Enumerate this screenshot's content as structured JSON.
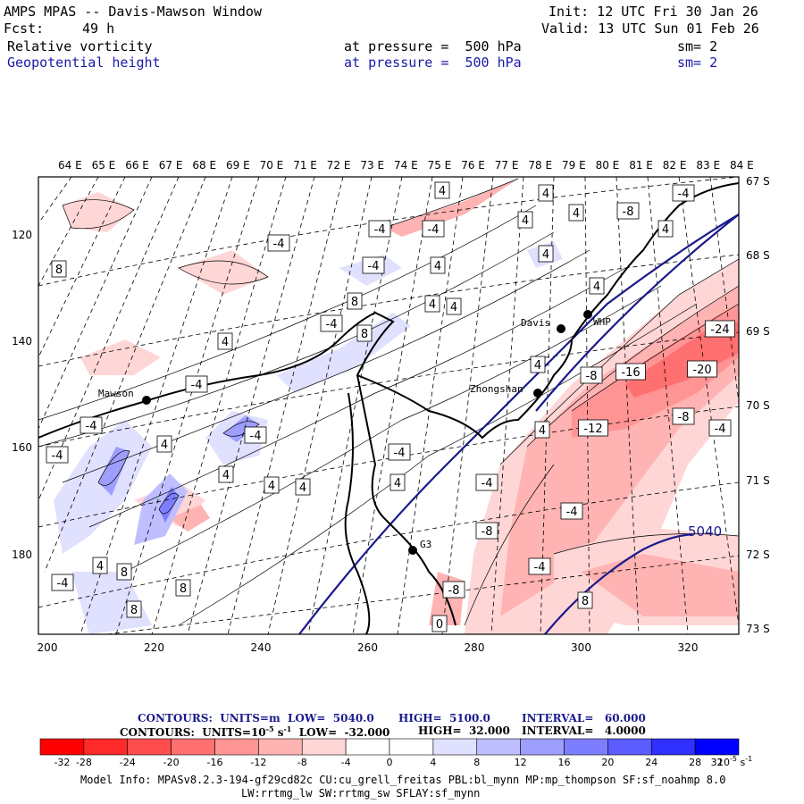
{
  "header": {
    "title": "AMPS MPAS -- Davis-Mawson Window",
    "init": "Init: 12 UTC Fri 30 Jan 26",
    "fcst_label": "Fcst:",
    "fcst_value": "49 h",
    "valid": "Valid: 13 UTC Sun 01 Feb 26",
    "field1": {
      "name": "Relative vorticity",
      "level": "at pressure =  500 hPa",
      "sm": "sm= 2"
    },
    "field2": {
      "name": "Geopotential height",
      "level": "at pressure =  500 hPa",
      "sm": "sm= 2"
    }
  },
  "map": {
    "top_lon_labels": [
      "64 E",
      "65 E",
      "66 E",
      "67 E",
      "68 E",
      "69 E",
      "70 E",
      "71 E",
      "72 E",
      "73 E",
      "74 E",
      "75 E",
      "76 E",
      "77 E",
      "78 E",
      "79 E",
      "80 E",
      "81 E",
      "82 E",
      "83 E",
      "84 E"
    ],
    "right_lat_labels": [
      "67 S",
      "68 S",
      "69 S",
      "70 S",
      "71 S",
      "72 S",
      "73 S"
    ],
    "left_labels": [
      "120",
      "140",
      "160",
      "180"
    ],
    "bottom_labels": [
      "200",
      "220",
      "240",
      "260",
      "280",
      "300",
      "320"
    ],
    "stations": [
      "Mawson",
      "Davis",
      "WHP",
      "Zhongshan",
      "G3"
    ],
    "height_label": "5040",
    "vort_labels": [
      "4",
      "-4",
      "-4",
      "-4",
      "4",
      "4",
      "4",
      "-8",
      "4",
      "-4",
      "8",
      "-4",
      "4",
      "4",
      "8",
      "4",
      "4",
      "-4",
      "8",
      "4",
      "4",
      "4",
      "-8",
      "-16",
      "-24",
      "-20",
      "-8",
      "-4",
      "-4",
      "-4",
      "4",
      "-4",
      "-4",
      "4",
      "-12",
      "4",
      "4",
      "4",
      "-4",
      "4",
      "-4",
      "4",
      "-8",
      "8",
      "8",
      "-4",
      "8",
      "-8",
      "-4",
      "8",
      "0",
      "-4"
    ]
  },
  "footer": {
    "contours1_label": "CONTOURS:  UNITS=m  LOW=  5040.0",
    "contours1_high": "HIGH=  5100.0",
    "contours1_interval": "INTERVAL=   60.000",
    "contours2_label": "CONTOURS:  UNITS=10",
    "contours2_sup": "-5",
    "contours2_rest": " s",
    "contours2_sup2": "-1",
    "contours2_low": "  LOW=  -32.000",
    "contours2_high": "HIGH=  32.000",
    "contours2_interval": "INTERVAL=   4.0000",
    "model_info_line1": "Model Info: MPASv8.2.3-194-gf29cd82c CU:cu_grell_freitas PBL:bl_mynn MP:mp_thompson SF:sf_noahmp 8.0",
    "model_info_line2": "LW:rrtmg_lw SW:rrtmg_sw SFLAY:sf_mynn"
  },
  "colorbar": {
    "colors": [
      "#ff0000",
      "#ff2a2a",
      "#ff4d4d",
      "#ff7070",
      "#ff9494",
      "#ffb3b3",
      "#ffd6d6",
      "#ffffff",
      "#ffffff",
      "#e0e0ff",
      "#bfbfff",
      "#9e9eff",
      "#7d7dff",
      "#5c5cff",
      "#3030ff",
      "#0000ff"
    ],
    "tick_labels": [
      "-32",
      "-28",
      "-24",
      "-20",
      "-16",
      "-12",
      "-8",
      "-4",
      "0",
      "4",
      "8",
      "12",
      "16",
      "20",
      "24",
      "28",
      "32"
    ],
    "units_label": "10",
    "units_sup": "-5",
    "units_rest": " s",
    "units_sup2": "-1"
  }
}
